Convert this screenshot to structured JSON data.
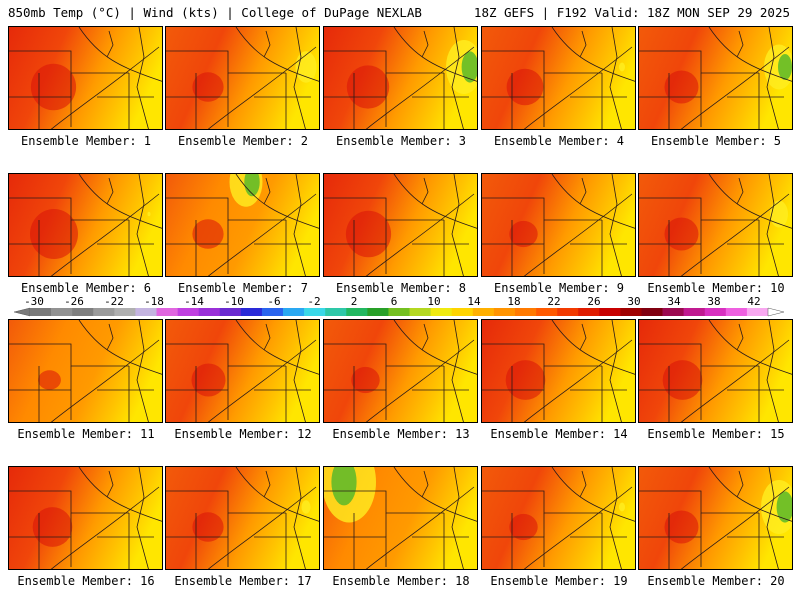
{
  "header": {
    "left": "850mb Temp (°C) | Wind (kts) | College of DuPage NEXLAB",
    "right": "18Z GEFS | F192 Valid: 18Z MON SEP 29 2025"
  },
  "colorbar": {
    "labels": [
      "-30",
      "-26",
      "-22",
      "-18",
      "-14",
      "-10",
      "-6",
      "-2",
      "2",
      "6",
      "10",
      "14",
      "18",
      "22",
      "26",
      "30",
      "34",
      "38",
      "42"
    ],
    "colors": [
      "#7a7a7a",
      "#929292",
      "#7f7f7f",
      "#9b9b9b",
      "#b0b0b0",
      "#c4b4e0",
      "#e066e0",
      "#c040e0",
      "#9a30d8",
      "#6a2ad0",
      "#2a2ad8",
      "#2a64ee",
      "#2aa8f2",
      "#3ad8e8",
      "#2ec8a8",
      "#22b860",
      "#28a028",
      "#74c020",
      "#b4d820",
      "#f0ea10",
      "#ffd400",
      "#ffb000",
      "#ff9400",
      "#ff7a00",
      "#ff5a00",
      "#f23a00",
      "#e01c00",
      "#c80000",
      "#a00000",
      "#800010",
      "#9c0a50",
      "#c01a90",
      "#d830c0",
      "#ee60e0",
      "#f8a8f0"
    ]
  },
  "panels": [
    {
      "label": "Ensemble Member: 1",
      "warm": 0.85,
      "cool": 0.0,
      "hot": 0.45
    },
    {
      "label": "Ensemble Member: 2",
      "warm": 0.7,
      "cool": 0.35,
      "hot": 0.2
    },
    {
      "label": "Ensemble Member: 3",
      "warm": 0.8,
      "cool": 0.6,
      "hot": 0.4
    },
    {
      "label": "Ensemble Member: 4",
      "warm": 0.75,
      "cool": 0.1,
      "hot": 0.3
    },
    {
      "label": "Ensemble Member: 5",
      "warm": 0.7,
      "cool": 0.5,
      "hot": 0.25
    },
    {
      "label": "Ensemble Member: 6",
      "warm": 0.85,
      "cool": 0.05,
      "hot": 0.5
    },
    {
      "label": "Ensemble Member: 7",
      "warm": 0.55,
      "cool": 0.55,
      "hot": 0.2
    },
    {
      "label": "Ensemble Member: 8",
      "warm": 0.85,
      "cool": 0.0,
      "hot": 0.45
    },
    {
      "label": "Ensemble Member: 9",
      "warm": 0.7,
      "cool": 0.0,
      "hot": 0.15
    },
    {
      "label": "Ensemble Member: 10",
      "warm": 0.75,
      "cool": 0.3,
      "hot": 0.25
    },
    {
      "label": "Ensemble Member: 11",
      "warm": 0.55,
      "cool": 0.0,
      "hot": 0.05
    },
    {
      "label": "Ensemble Member: 12",
      "warm": 0.7,
      "cool": 0.0,
      "hot": 0.25
    },
    {
      "label": "Ensemble Member: 13",
      "warm": 0.65,
      "cool": 0.0,
      "hot": 0.15
    },
    {
      "label": "Ensemble Member: 14",
      "warm": 0.8,
      "cool": 0.0,
      "hot": 0.35
    },
    {
      "label": "Ensemble Member: 15",
      "warm": 0.8,
      "cool": 0.0,
      "hot": 0.35
    },
    {
      "label": "Ensemble Member: 16",
      "warm": 0.8,
      "cool": 0.0,
      "hot": 0.35
    },
    {
      "label": "Ensemble Member: 17",
      "warm": 0.7,
      "cool": 0.15,
      "hot": 0.2
    },
    {
      "label": "Ensemble Member: 18",
      "warm": 0.45,
      "cool": 0.9,
      "hot": 0.0
    },
    {
      "label": "Ensemble Member: 19",
      "warm": 0.65,
      "cool": 0.1,
      "hot": 0.15
    },
    {
      "label": "Ensemble Member: 20",
      "warm": 0.7,
      "cool": 0.6,
      "hot": 0.25
    }
  ]
}
